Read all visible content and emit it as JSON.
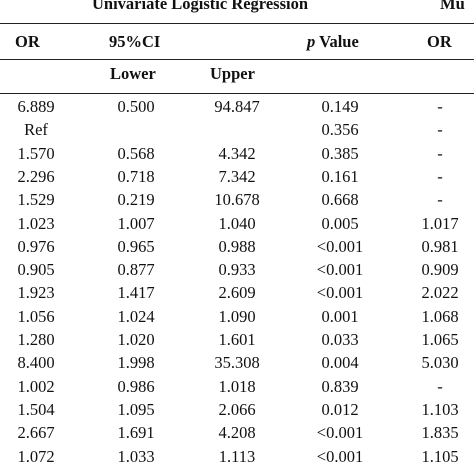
{
  "title_left": "Univariate Logistic Regression",
  "title_right": "Mu",
  "col_or": "OR",
  "col_ci": "95%CI",
  "col_p_italic": "p",
  "col_p_rest": " Value",
  "col_or2": "OR",
  "sub_lower": "Lower",
  "sub_upper": "Upper",
  "rows": [
    {
      "or": "6.889",
      "lower": "0.500",
      "upper": "94.847",
      "p": "0.149",
      "or2": "-"
    },
    {
      "or": "Ref",
      "lower": "",
      "upper": "",
      "p": "0.356",
      "or2": "-"
    },
    {
      "or": "1.570",
      "lower": "0.568",
      "upper": "4.342",
      "p": "0.385",
      "or2": "-"
    },
    {
      "or": "2.296",
      "lower": "0.718",
      "upper": "7.342",
      "p": "0.161",
      "or2": "-"
    },
    {
      "or": "1.529",
      "lower": "0.219",
      "upper": "10.678",
      "p": "0.668",
      "or2": "-"
    },
    {
      "or": "1.023",
      "lower": "1.007",
      "upper": "1.040",
      "p": "0.005",
      "or2": "1.017"
    },
    {
      "or": "0.976",
      "lower": "0.965",
      "upper": "0.988",
      "p": "<0.001",
      "or2": "0.981"
    },
    {
      "or": "0.905",
      "lower": "0.877",
      "upper": "0.933",
      "p": "<0.001",
      "or2": "0.909"
    },
    {
      "or": "1.923",
      "lower": "1.417",
      "upper": "2.609",
      "p": "<0.001",
      "or2": "2.022"
    },
    {
      "or": "1.056",
      "lower": "1.024",
      "upper": "1.090",
      "p": "0.001",
      "or2": "1.068"
    },
    {
      "or": "1.280",
      "lower": "1.020",
      "upper": "1.601",
      "p": "0.033",
      "or2": "1.065"
    },
    {
      "or": "8.400",
      "lower": "1.998",
      "upper": "35.308",
      "p": "0.004",
      "or2": "5.030"
    },
    {
      "or": "1.002",
      "lower": "0.986",
      "upper": "1.018",
      "p": "0.839",
      "or2": "-"
    },
    {
      "or": "1.504",
      "lower": "1.095",
      "upper": "2.066",
      "p": "0.012",
      "or2": "1.103"
    },
    {
      "or": "2.667",
      "lower": "1.691",
      "upper": "4.208",
      "p": "<0.001",
      "or2": "1.835"
    },
    {
      "or": "1.072",
      "lower": "1.033",
      "upper": "1.113",
      "p": "<0.001",
      "or2": "1.105"
    }
  ]
}
